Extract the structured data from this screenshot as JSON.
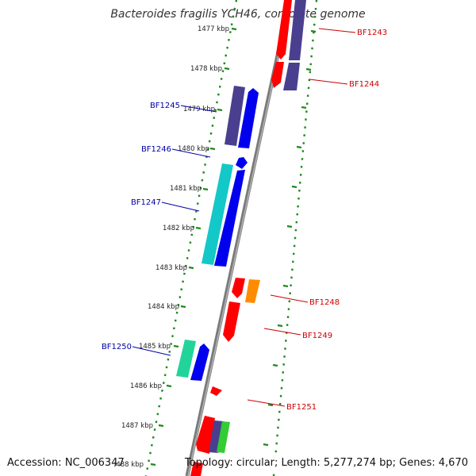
{
  "header": {
    "title": "Bacteroides fragilis YCH46, complete genome"
  },
  "footer": {
    "accession": "Accession: NC_006347",
    "summary": "Topology: circular; Length: 5,277,274 bp; Genes: 4,670"
  },
  "colors": {
    "background": "#ffffff",
    "backbone": "#8a8a8a",
    "tick_ring": "#1d8a1d",
    "label_forward": "#cc0000",
    "label_reverse": "#0000aa",
    "gene_red": "#ff0000",
    "gene_blue": "#0000ee",
    "gene_navy": "#4a3f8f",
    "gene_cyan": "#13c8c8",
    "gene_teal_green": "#22d49a",
    "gene_orange": "#ff8c00",
    "gene_green": "#33cc33"
  },
  "kbp_ticks": [
    {
      "label": "1477 kbp"
    },
    {
      "label": "1478 kbp"
    },
    {
      "label": "1479 kbp"
    },
    {
      "label": "1480 kbp"
    },
    {
      "label": "1481 kbp"
    },
    {
      "label": "1482 kbp"
    },
    {
      "label": "1483 kbp"
    },
    {
      "label": "1484 kbp"
    },
    {
      "label": "1485 kbp"
    },
    {
      "label": "1486 kbp"
    },
    {
      "label": "1487 kbp"
    },
    {
      "label": "1488 kbp"
    }
  ],
  "gene_labels": [
    {
      "name": "BF1243",
      "strand": "forward"
    },
    {
      "name": "BF1244",
      "strand": "forward"
    },
    {
      "name": "BF1245",
      "strand": "reverse"
    },
    {
      "name": "BF1246",
      "strand": "reverse"
    },
    {
      "name": "BF1247",
      "strand": "reverse"
    },
    {
      "name": "BF1248",
      "strand": "forward"
    },
    {
      "name": "BF1249",
      "strand": "forward"
    },
    {
      "name": "BF1250",
      "strand": "reverse"
    },
    {
      "name": "BF1251",
      "strand": "forward"
    }
  ]
}
